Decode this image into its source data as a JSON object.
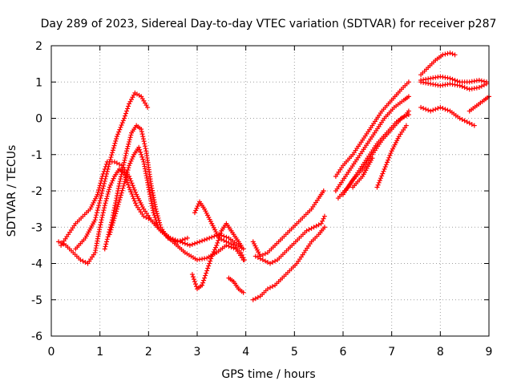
{
  "chart_data": {
    "type": "scatter",
    "title": "Day 289 of 2023, Sidereal Day-to-day VTEC variation (SDTVAR) for receiver p287",
    "xlabel": "GPS time / hours",
    "ylabel": "SDTVAR / TECUs",
    "xlim": [
      0,
      9
    ],
    "ylim": [
      -6,
      2
    ],
    "xticks": [
      "0",
      "1",
      "2",
      "3",
      "4",
      "5",
      "6",
      "7",
      "8",
      "9"
    ],
    "yticks": [
      "-6",
      "-5",
      "-4",
      "-3",
      "-2",
      "-1",
      "0",
      "1",
      "2"
    ],
    "grid": true,
    "legend": "none",
    "marker": "+",
    "color": "#ff0000",
    "series": [
      {
        "x": [
          0.15,
          0.3,
          0.45,
          0.6,
          0.75,
          0.9,
          1.0,
          1.1,
          1.2,
          1.3,
          1.4,
          1.5,
          1.6,
          1.75,
          1.9,
          2.05,
          2.25,
          2.5,
          2.75,
          3.0,
          3.2,
          3.4,
          3.6,
          3.8,
          3.95
        ],
        "y": [
          -3.4,
          -3.5,
          -3.7,
          -3.9,
          -4.0,
          -3.7,
          -3.0,
          -2.4,
          -1.9,
          -1.6,
          -1.4,
          -1.5,
          -1.9,
          -2.4,
          -2.7,
          -2.8,
          -3.1,
          -3.4,
          -3.7,
          -3.9,
          -3.85,
          -3.7,
          -3.5,
          -3.6,
          -3.9
        ]
      },
      {
        "x": [
          0.2,
          0.35,
          0.5,
          0.65,
          0.8,
          0.95,
          1.05,
          1.15,
          1.3,
          1.45,
          1.6,
          1.75,
          1.9,
          2.05,
          2.25,
          2.45,
          2.65,
          2.85,
          3.05,
          3.25,
          3.45,
          3.65,
          3.85,
          3.95
        ],
        "y": [
          -3.5,
          -3.2,
          -2.9,
          -2.7,
          -2.5,
          -2.1,
          -1.6,
          -1.2,
          -1.2,
          -1.3,
          -1.6,
          -2.1,
          -2.5,
          -2.8,
          -3.1,
          -3.3,
          -3.4,
          -3.5,
          -3.4,
          -3.3,
          -3.2,
          -3.3,
          -3.5,
          -3.6
        ]
      },
      {
        "x": [
          0.5,
          0.7,
          0.9,
          1.05,
          1.2,
          1.35,
          1.5,
          1.6,
          1.72,
          1.85,
          1.98
        ],
        "y": [
          -3.6,
          -3.3,
          -2.8,
          -2.0,
          -1.2,
          -0.5,
          0.0,
          0.4,
          0.7,
          0.6,
          0.3
        ]
      },
      {
        "x": [
          1.1,
          1.25,
          1.4,
          1.55,
          1.65,
          1.75,
          1.85,
          1.95,
          2.05,
          2.15,
          2.25,
          2.4,
          2.6,
          2.8
        ],
        "y": [
          -3.6,
          -2.8,
          -1.8,
          -0.9,
          -0.4,
          -0.2,
          -0.3,
          -0.9,
          -1.8,
          -2.5,
          -3.0,
          -3.3,
          -3.4,
          -3.3
        ]
      },
      {
        "x": [
          1.2,
          1.35,
          1.5,
          1.6,
          1.7,
          1.8,
          1.9,
          2.0,
          2.1,
          2.2
        ],
        "y": [
          -3.2,
          -2.5,
          -1.8,
          -1.3,
          -1.0,
          -0.8,
          -1.2,
          -1.9,
          -2.6,
          -3.0
        ]
      },
      {
        "x": [
          2.9,
          3.0,
          3.1,
          3.2,
          3.3,
          3.4,
          3.5,
          3.6,
          3.7,
          3.8,
          3.9
        ],
        "y": [
          -4.3,
          -4.7,
          -4.6,
          -4.2,
          -3.8,
          -3.5,
          -3.1,
          -2.9,
          -3.1,
          -3.3,
          -3.5
        ]
      },
      {
        "x": [
          2.95,
          3.05,
          3.15,
          3.3,
          3.45,
          3.6,
          3.75,
          3.9,
          3.97
        ],
        "y": [
          -2.6,
          -2.3,
          -2.5,
          -2.9,
          -3.3,
          -3.4,
          -3.5,
          -3.7,
          -3.9
        ]
      },
      {
        "x": [
          3.65,
          3.75,
          3.85,
          3.95
        ],
        "y": [
          -4.4,
          -4.5,
          -4.7,
          -4.8
        ]
      },
      {
        "x": [
          4.15,
          4.3,
          4.45,
          4.6,
          4.75,
          4.9,
          5.05,
          5.2,
          5.35,
          5.5,
          5.6
        ],
        "y": [
          -3.4,
          -3.8,
          -3.7,
          -3.5,
          -3.3,
          -3.1,
          -2.9,
          -2.7,
          -2.5,
          -2.2,
          -2.0
        ]
      },
      {
        "x": [
          4.2,
          4.35,
          4.5,
          4.65,
          4.8,
          4.95,
          5.1,
          5.25,
          5.4,
          5.55,
          5.62
        ],
        "y": [
          -3.8,
          -3.9,
          -4.0,
          -3.9,
          -3.7,
          -3.5,
          -3.3,
          -3.1,
          -3.0,
          -2.9,
          -2.7
        ]
      },
      {
        "x": [
          4.15,
          4.3,
          4.45,
          4.6,
          4.75,
          4.9,
          5.05,
          5.2,
          5.35,
          5.5,
          5.62
        ],
        "y": [
          -5.0,
          -4.9,
          -4.7,
          -4.6,
          -4.4,
          -4.2,
          -4.0,
          -3.7,
          -3.4,
          -3.2,
          -3.0
        ]
      },
      {
        "x": [
          5.85,
          6.0,
          6.2,
          6.4,
          6.6,
          6.8,
          7.0,
          7.2,
          7.35
        ],
        "y": [
          -1.6,
          -1.3,
          -1.0,
          -0.6,
          -0.2,
          0.2,
          0.5,
          0.8,
          1.0
        ]
      },
      {
        "x": [
          5.85,
          6.05,
          6.25,
          6.45,
          6.65,
          6.85,
          7.05,
          7.25,
          7.35
        ],
        "y": [
          -2.0,
          -1.6,
          -1.2,
          -0.8,
          -0.4,
          0.0,
          0.3,
          0.5,
          0.6
        ]
      },
      {
        "x": [
          5.9,
          6.1,
          6.3,
          6.5,
          6.7,
          6.9,
          7.1,
          7.3,
          7.35
        ],
        "y": [
          -2.2,
          -1.9,
          -1.5,
          -1.1,
          -0.7,
          -0.4,
          -0.1,
          0.1,
          0.2
        ]
      },
      {
        "x": [
          6.0,
          6.2,
          6.4,
          6.6,
          6.8,
          7.0,
          7.2,
          7.35
        ],
        "y": [
          -2.1,
          -1.7,
          -1.4,
          -1.0,
          -0.6,
          -0.3,
          0.0,
          0.1
        ]
      },
      {
        "x": [
          6.7,
          6.85,
          7.0,
          7.15,
          7.3
        ],
        "y": [
          -1.9,
          -1.4,
          -0.9,
          -0.5,
          -0.2
        ]
      },
      {
        "x": [
          6.2,
          6.4,
          6.6
        ],
        "y": [
          -1.9,
          -1.6,
          -1.1
        ]
      },
      {
        "x": [
          7.6,
          7.75,
          7.9,
          8.05,
          8.2,
          8.3
        ],
        "y": [
          1.2,
          1.4,
          1.6,
          1.75,
          1.8,
          1.75
        ]
      },
      {
        "x": [
          7.6,
          7.8,
          8.0,
          8.2,
          8.4,
          8.6,
          8.8,
          8.95
        ],
        "y": [
          1.0,
          0.95,
          0.9,
          0.95,
          0.9,
          0.8,
          0.85,
          0.95
        ]
      },
      {
        "x": [
          7.6,
          7.8,
          8.0,
          8.2,
          8.4,
          8.6,
          8.8,
          8.95
        ],
        "y": [
          1.05,
          1.1,
          1.15,
          1.1,
          1.0,
          1.0,
          1.05,
          1.0
        ]
      },
      {
        "x": [
          7.6,
          7.8,
          8.0,
          8.2,
          8.4,
          8.55,
          8.7
        ],
        "y": [
          0.3,
          0.2,
          0.3,
          0.2,
          0.0,
          -0.1,
          -0.2
        ]
      },
      {
        "x": [
          8.6,
          8.75,
          8.9,
          9.0
        ],
        "y": [
          0.2,
          0.35,
          0.5,
          0.6
        ]
      }
    ]
  }
}
